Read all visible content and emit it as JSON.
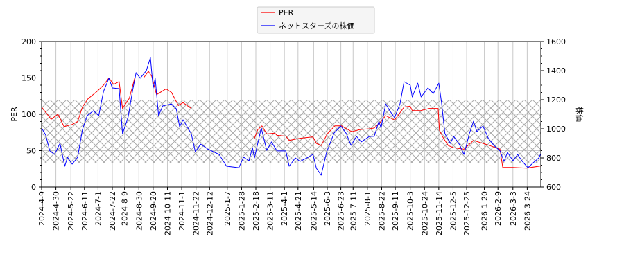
{
  "chart_data": {
    "type": "line",
    "title": "",
    "ylabel_left": "PER",
    "ylabel_right": "株価",
    "ylim_left": [
      0,
      200
    ],
    "ylim_right": [
      600,
      1600
    ],
    "xlim": [
      "2024-04-09",
      "2026-04-13"
    ],
    "yticks_left": [
      0,
      50,
      100,
      150,
      200
    ],
    "yticks_right": [
      600,
      800,
      1000,
      1200,
      1400,
      1600
    ],
    "xticks": [
      "2024-4-9",
      "2024-4-30",
      "2024-5-22",
      "2024-6-11",
      "2024-7-1",
      "2024-7-22",
      "2024-8-9",
      "2024-8-30",
      "2024-9-20",
      "2024-10-11",
      "2024-11-1",
      "2024-11-22",
      "2024-12-12",
      "2025-1-7",
      "2025-1-28",
      "2025-2-18",
      "2025-3-11",
      "2025-4-1",
      "2025-4-21",
      "2025-5-14",
      "2025-6-3",
      "2025-6-23",
      "2025-7-11",
      "2025-8-1",
      "2025-8-22",
      "2025-9-11",
      "2025-10-3",
      "2025-10-24",
      "2025-11-14",
      "2025-12-5",
      "2025-12-25",
      "2026-1-20",
      "2026-2-9",
      "2026-3-3",
      "2026-3-24"
    ],
    "grid": true,
    "legend_placement": "top-center",
    "hatched_band_per": [
      33,
      119
    ],
    "series": [
      {
        "name": "PER",
        "axis": "left",
        "color": "#ff0000",
        "points": [
          [
            "2024-04-09",
            110
          ],
          [
            "2024-04-23",
            93
          ],
          [
            "2024-05-03",
            100
          ],
          [
            "2024-05-12",
            83
          ],
          [
            "2024-05-24",
            86
          ],
          [
            "2024-06-01",
            90
          ],
          [
            "2024-06-08",
            110
          ],
          [
            "2024-06-16",
            121
          ],
          [
            "2024-06-29",
            131
          ],
          [
            "2024-07-09",
            140
          ],
          [
            "2024-07-17",
            150
          ],
          [
            "2024-07-24",
            141
          ],
          [
            "2024-08-01",
            145
          ],
          [
            "2024-08-06",
            108
          ],
          [
            "2024-08-16",
            122
          ],
          [
            "2024-08-24",
            150
          ],
          [
            "2024-09-06",
            150
          ],
          [
            "2024-09-13",
            159
          ],
          [
            "2024-09-18",
            152
          ],
          [
            "2024-09-25",
            127
          ],
          [
            "2024-10-09",
            135
          ],
          [
            "2024-10-17",
            130
          ],
          [
            "2024-10-27",
            112
          ],
          [
            "2024-11-03",
            116
          ],
          [
            "2024-11-15",
            108
          ],
          null,
          [
            "2025-02-16",
            67
          ],
          [
            "2025-02-21",
            79
          ],
          [
            "2025-02-27",
            84
          ],
          [
            "2025-03-06",
            73
          ],
          [
            "2025-03-18",
            74
          ],
          [
            "2025-03-21",
            71
          ],
          [
            "2025-04-03",
            70
          ],
          [
            "2025-04-08",
            64
          ],
          [
            "2025-04-24",
            67
          ],
          [
            "2025-05-13",
            69
          ],
          [
            "2025-05-18",
            60
          ],
          [
            "2025-05-25",
            57
          ],
          [
            "2025-06-03",
            73
          ],
          [
            "2025-06-14",
            84
          ],
          [
            "2025-06-24",
            84
          ],
          [
            "2025-07-09",
            76
          ],
          [
            "2025-07-21",
            79
          ],
          [
            "2025-08-04",
            80
          ],
          [
            "2025-08-11",
            81
          ],
          [
            "2025-08-19",
            88
          ],
          [
            "2025-08-28",
            98
          ],
          [
            "2025-09-10",
            92
          ],
          [
            "2025-09-18",
            102
          ],
          [
            "2025-09-24",
            110
          ],
          [
            "2025-10-03",
            111
          ],
          [
            "2025-10-06",
            105
          ],
          [
            "2025-10-18",
            105
          ],
          [
            "2025-10-31",
            108
          ],
          [
            "2025-11-13",
            108
          ],
          [
            "2025-11-15",
            78
          ],
          [
            "2025-11-21",
            67
          ],
          [
            "2025-11-28",
            57
          ],
          [
            "2025-12-06",
            54
          ],
          [
            "2025-12-21",
            52
          ],
          [
            "2026-01-04",
            64
          ],
          [
            "2026-01-18",
            60
          ],
          [
            "2026-01-28",
            57
          ],
          [
            "2026-02-12",
            52
          ],
          [
            "2026-02-16",
            27
          ],
          [
            "2026-03-03",
            27
          ],
          [
            "2026-03-23",
            26
          ],
          [
            "2026-04-13",
            29
          ]
        ]
      },
      {
        "name": "ネットスターズの株価",
        "axis": "right",
        "color": "#0000ff",
        "points": [
          [
            "2024-04-09",
            1005
          ],
          [
            "2024-04-15",
            957
          ],
          [
            "2024-04-21",
            848
          ],
          [
            "2024-04-28",
            824
          ],
          [
            "2024-05-06",
            900
          ],
          [
            "2024-05-13",
            743
          ],
          [
            "2024-05-17",
            805
          ],
          [
            "2024-05-24",
            757
          ],
          [
            "2024-06-01",
            805
          ],
          [
            "2024-06-08",
            995
          ],
          [
            "2024-06-15",
            1090
          ],
          [
            "2024-06-24",
            1124
          ],
          [
            "2024-07-02",
            1090
          ],
          [
            "2024-07-09",
            1257
          ],
          [
            "2024-07-17",
            1348
          ],
          [
            "2024-07-22",
            1281
          ],
          [
            "2024-08-01",
            1276
          ],
          [
            "2024-08-06",
            967
          ],
          [
            "2024-08-14",
            1076
          ],
          [
            "2024-08-21",
            1267
          ],
          [
            "2024-08-26",
            1386
          ],
          [
            "2024-09-01",
            1348
          ],
          [
            "2024-09-10",
            1400
          ],
          [
            "2024-09-16",
            1490
          ],
          [
            "2024-09-20",
            1281
          ],
          [
            "2024-09-23",
            1348
          ],
          [
            "2024-09-28",
            1090
          ],
          [
            "2024-10-04",
            1157
          ],
          [
            "2024-10-17",
            1171
          ],
          [
            "2024-10-24",
            1138
          ],
          [
            "2024-10-29",
            1014
          ],
          [
            "2024-11-03",
            1062
          ],
          [
            "2024-11-15",
            967
          ],
          [
            "2024-11-21",
            843
          ],
          [
            "2024-11-29",
            895
          ],
          [
            "2024-12-09",
            862
          ],
          [
            "2024-12-26",
            824
          ],
          [
            "2025-01-06",
            743
          ],
          [
            "2025-01-24",
            733
          ],
          [
            "2025-01-31",
            805
          ],
          [
            "2025-02-08",
            781
          ],
          [
            "2025-02-13",
            871
          ],
          [
            "2025-02-16",
            800
          ],
          [
            "2025-02-26",
            1005
          ],
          [
            "2025-03-06",
            852
          ],
          [
            "2025-03-13",
            910
          ],
          [
            "2025-03-21",
            848
          ],
          [
            "2025-04-03",
            848
          ],
          [
            "2025-04-08",
            743
          ],
          [
            "2025-04-17",
            800
          ],
          [
            "2025-04-24",
            776
          ],
          [
            "2025-05-04",
            800
          ],
          [
            "2025-05-13",
            824
          ],
          [
            "2025-05-18",
            729
          ],
          [
            "2025-05-25",
            681
          ],
          [
            "2025-06-02",
            838
          ],
          [
            "2025-06-13",
            971
          ],
          [
            "2025-06-23",
            1019
          ],
          [
            "2025-07-01",
            967
          ],
          [
            "2025-07-08",
            886
          ],
          [
            "2025-07-16",
            948
          ],
          [
            "2025-07-23",
            910
          ],
          [
            "2025-08-04",
            948
          ],
          [
            "2025-08-11",
            948
          ],
          [
            "2025-08-18",
            1052
          ],
          [
            "2025-08-21",
            1005
          ],
          [
            "2025-08-28",
            1171
          ],
          [
            "2025-09-03",
            1124
          ],
          [
            "2025-09-10",
            1076
          ],
          [
            "2025-09-18",
            1171
          ],
          [
            "2025-09-24",
            1324
          ],
          [
            "2025-10-03",
            1300
          ],
          [
            "2025-10-06",
            1219
          ],
          [
            "2025-10-14",
            1314
          ],
          [
            "2025-10-19",
            1219
          ],
          [
            "2025-10-29",
            1281
          ],
          [
            "2025-11-06",
            1243
          ],
          [
            "2025-11-14",
            1314
          ],
          [
            "2025-11-18",
            1181
          ],
          [
            "2025-11-23",
            967
          ],
          [
            "2025-12-01",
            900
          ],
          [
            "2025-12-06",
            948
          ],
          [
            "2025-12-14",
            895
          ],
          [
            "2025-12-21",
            824
          ],
          [
            "2025-12-29",
            967
          ],
          [
            "2026-01-04",
            1052
          ],
          [
            "2026-01-09",
            981
          ],
          [
            "2026-01-18",
            1019
          ],
          [
            "2026-01-26",
            933
          ],
          [
            "2026-02-03",
            886
          ],
          [
            "2026-02-12",
            848
          ],
          [
            "2026-02-18",
            776
          ],
          [
            "2026-02-23",
            838
          ],
          [
            "2026-03-03",
            781
          ],
          [
            "2026-03-10",
            824
          ],
          [
            "2026-03-16",
            781
          ],
          [
            "2026-03-25",
            733
          ],
          [
            "2026-04-02",
            767
          ],
          [
            "2026-04-10",
            800
          ],
          [
            "2026-04-13",
            829
          ]
        ]
      }
    ]
  }
}
